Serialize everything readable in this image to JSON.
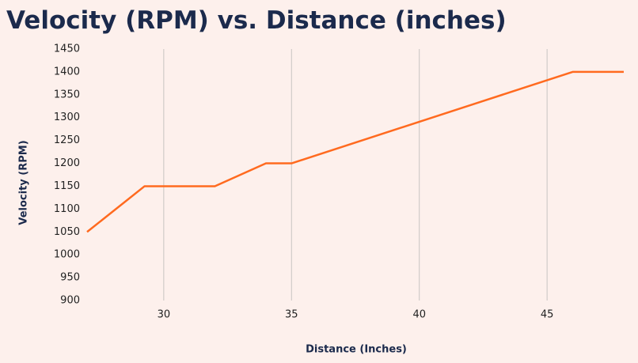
{
  "chart_data": {
    "type": "line",
    "title": "Velocity (RPM) vs. Distance (inches)",
    "x_label": "Distance (Inches)",
    "y_label": "Velocity (RPM)",
    "x": [
      27,
      29.25,
      32,
      34,
      35,
      46,
      48
    ],
    "series": [
      {
        "name": "Velocity",
        "color": "#ff6a1f",
        "values": [
          1050,
          1150,
          1150,
          1200,
          1200,
          1400,
          1400
        ]
      }
    ],
    "xlim": [
      27,
      48
    ],
    "xticks": [
      30,
      35,
      40,
      45
    ],
    "ylim": [
      900,
      1450
    ],
    "yticks": [
      900,
      950,
      1000,
      1050,
      1100,
      1150,
      1200,
      1250,
      1300,
      1350,
      1400,
      1450
    ],
    "grid": "x"
  }
}
